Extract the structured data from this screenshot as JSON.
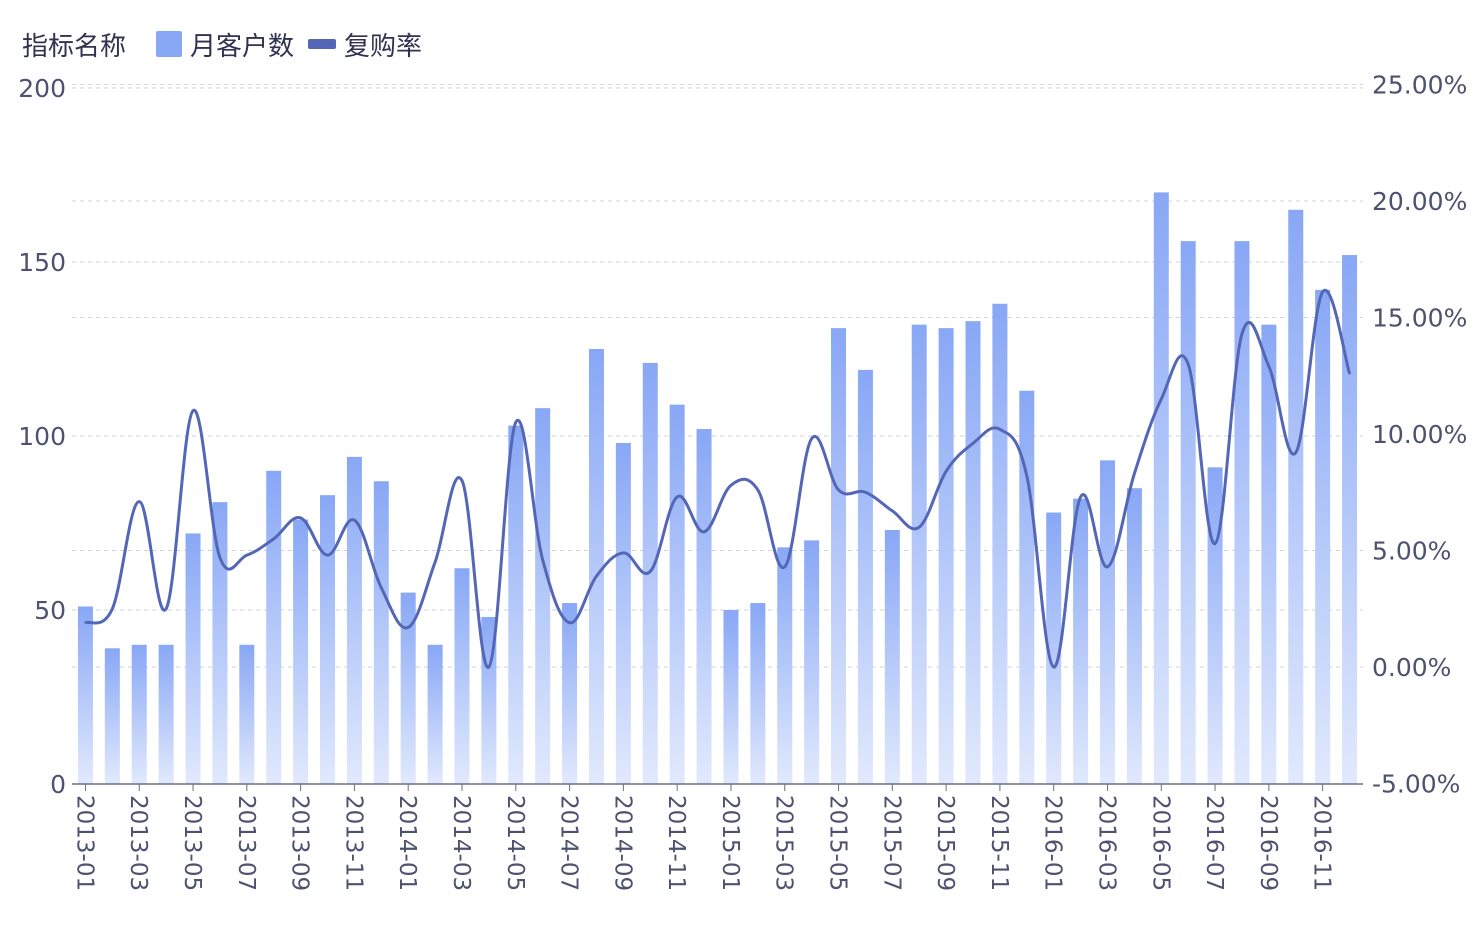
{
  "chart_data": {
    "type": "bar",
    "legend_title": "指标名称",
    "legend_position": "top-left",
    "grid": true,
    "categories": [
      "2013-01",
      "2013-02",
      "2013-03",
      "2013-04",
      "2013-05",
      "2013-06",
      "2013-07",
      "2013-08",
      "2013-09",
      "2013-10",
      "2013-11",
      "2013-12",
      "2014-01",
      "2014-02",
      "2014-03",
      "2014-04",
      "2014-05",
      "2014-06",
      "2014-07",
      "2014-08",
      "2014-09",
      "2014-10",
      "2014-11",
      "2014-12",
      "2015-01",
      "2015-02",
      "2015-03",
      "2015-04",
      "2015-05",
      "2015-06",
      "2015-07",
      "2015-08",
      "2015-09",
      "2015-10",
      "2015-11",
      "2015-12",
      "2016-01",
      "2016-02",
      "2016-03",
      "2016-04",
      "2016-05",
      "2016-06",
      "2016-07",
      "2016-08",
      "2016-09",
      "2016-10",
      "2016-11",
      "2016-12"
    ],
    "x_tick_labels": [
      "2013-01",
      "2013-03",
      "2013-05",
      "2013-07",
      "2013-09",
      "2013-11",
      "2014-01",
      "2014-03",
      "2014-05",
      "2014-07",
      "2014-09",
      "2014-11",
      "2015-01",
      "2015-03",
      "2015-05",
      "2015-07",
      "2015-09",
      "2015-11",
      "2016-01",
      "2016-03",
      "2016-05",
      "2016-07",
      "2016-09",
      "2016-11"
    ],
    "y_left": {
      "ticks": [
        "200",
        "150",
        "100",
        "50",
        "0"
      ],
      "range": [
        0,
        200
      ]
    },
    "y_right": {
      "ticks": [
        "25.00%",
        "20.00%",
        "15.00%",
        "10.00%",
        "5.00%",
        "0.00%",
        "-5.00%"
      ],
      "range": [
        -5,
        25
      ]
    },
    "series": [
      {
        "name": "月客户数",
        "type": "bar",
        "axis": "left",
        "color": "#88a7f5",
        "values": [
          51,
          39,
          40,
          40,
          72,
          81,
          40,
          90,
          76,
          83,
          94,
          87,
          55,
          40,
          62,
          48,
          103,
          108,
          52,
          125,
          98,
          121,
          109,
          102,
          50,
          52,
          68,
          70,
          131,
          119,
          73,
          132,
          131,
          133,
          138,
          113,
          78,
          82,
          93,
          85,
          170,
          156,
          91,
          156,
          132,
          165,
          142,
          152
        ]
      },
      {
        "name": "复购率",
        "type": "line",
        "axis": "right",
        "color": "#5467b6",
        "values": [
          1.9,
          2.5,
          7.1,
          2.5,
          11.0,
          4.7,
          4.8,
          5.5,
          6.4,
          4.8,
          6.3,
          3.4,
          1.7,
          4.5,
          8.0,
          0.0,
          10.5,
          4.6,
          1.9,
          3.9,
          4.9,
          4.1,
          7.3,
          5.8,
          7.8,
          7.6,
          4.3,
          9.8,
          7.6,
          7.5,
          6.7,
          6.0,
          8.4,
          9.6,
          10.2,
          8.2,
          0.0,
          7.3,
          4.3,
          8.3,
          11.5,
          13.0,
          5.3,
          14.3,
          12.9,
          9.2,
          16.1,
          12.6
        ]
      }
    ]
  }
}
